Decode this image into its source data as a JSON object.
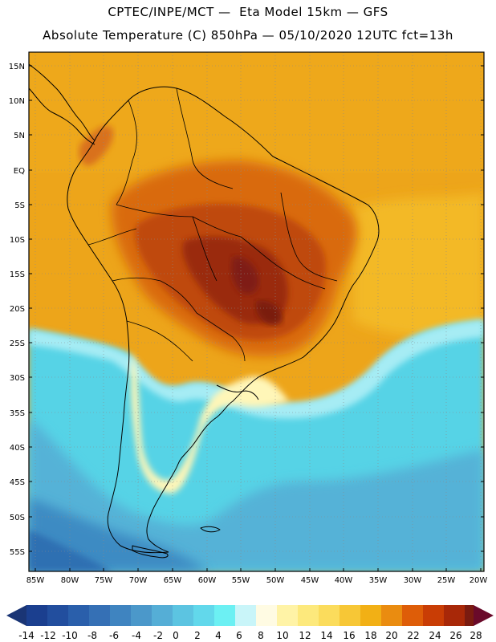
{
  "header": {
    "line1": "CPTEC/INPE/MCT —  Eta Model 15km — GFS",
    "line2": "Absolute Temperature (C) 850hPa — 05/10/2020 12UTC fct=13h"
  },
  "map": {
    "lat_labels": [
      "15N",
      "10N",
      "5N",
      "EQ",
      "5S",
      "10S",
      "15S",
      "20S",
      "25S",
      "30S",
      "35S",
      "40S",
      "45S",
      "50S",
      "55S"
    ],
    "lon_labels": [
      "85W",
      "80W",
      "75W",
      "70W",
      "65W",
      "60W",
      "55W",
      "50W",
      "45W",
      "40W",
      "35W",
      "30W",
      "25W",
      "20W"
    ],
    "region": "South America"
  },
  "colorbar": {
    "labels": [
      "-14",
      "-12",
      "-10",
      "-8",
      "-6",
      "-4",
      "-2",
      "0",
      "2",
      "4",
      "6",
      "8",
      "10",
      "12",
      "14",
      "16",
      "18",
      "20",
      "22",
      "24",
      "26",
      "28"
    ],
    "colors": [
      "#1b3f8f",
      "#224e9e",
      "#2a5fab",
      "#3570b5",
      "#3f84c0",
      "#4b98ca",
      "#55aed6",
      "#5cc4e1",
      "#62d8eb",
      "#6cf0f3",
      "#c9f5f9",
      "#fffbe3",
      "#fff3a6",
      "#fde97c",
      "#fbdc5c",
      "#f7c736",
      "#f2b015",
      "#ea8c10",
      "#de5d08",
      "#c93d05",
      "#a82808",
      "#7a1b10"
    ],
    "low_arrow_color": "#1a3575",
    "high_arrow_color": "#6a0a2a"
  }
}
